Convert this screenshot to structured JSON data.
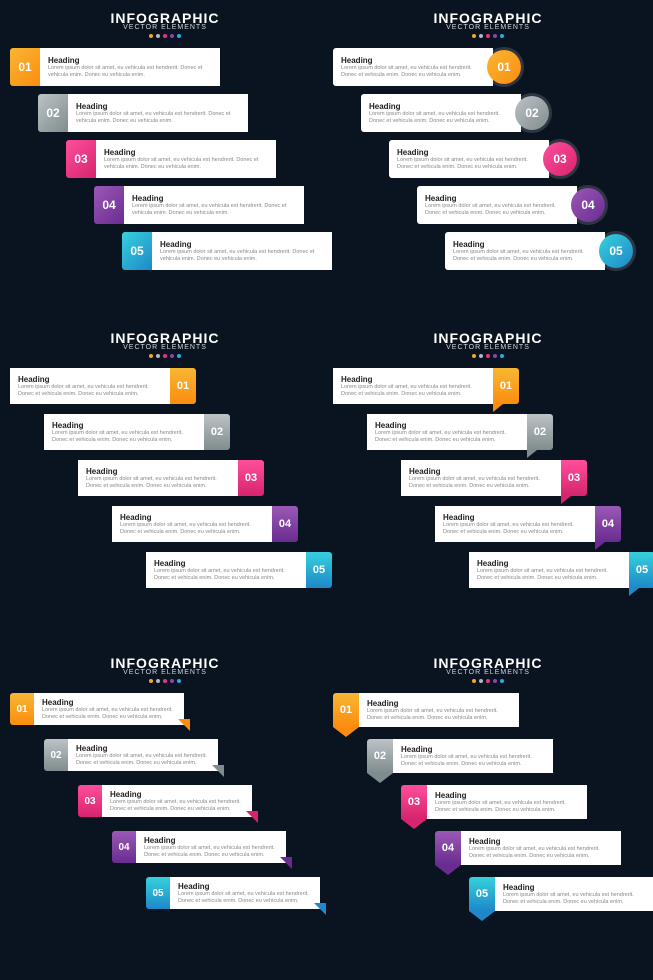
{
  "title": "INFOGRAPHIC",
  "subtitle": "VECTOR ELEMENTS",
  "title_fontsize": 14,
  "subtitle_fontsize": 7,
  "dot_colors": [
    "#f5a623",
    "#b0b7bf",
    "#e6357e",
    "#8e44ad",
    "#29abe2"
  ],
  "item_heading": "Heading",
  "item_body": "Lorem ipsum dolor sit amet, eu vehicula est hendrerit. Donec et vehicula enim. Donec eu vehicula enim.",
  "steps": [
    {
      "num": "01",
      "g1": "#f7b733",
      "g2": "#fc8c0f",
      "solid": "#f5a623"
    },
    {
      "num": "02",
      "g1": "#bdc3c7",
      "g2": "#7f8c8d",
      "solid": "#a0a7af"
    },
    {
      "num": "03",
      "g1": "#ff4e9b",
      "g2": "#d6246e",
      "solid": "#e6357e"
    },
    {
      "num": "04",
      "g1": "#9b59b6",
      "g2": "#6a2c91",
      "solid": "#8e44ad"
    },
    {
      "num": "05",
      "g1": "#36d1dc",
      "g2": "#1e88c9",
      "solid": "#29abe2"
    }
  ],
  "card_bg": "#ffffff",
  "heading_color": "#222222",
  "body_color": "#888888",
  "background_color": "#0a1320"
}
